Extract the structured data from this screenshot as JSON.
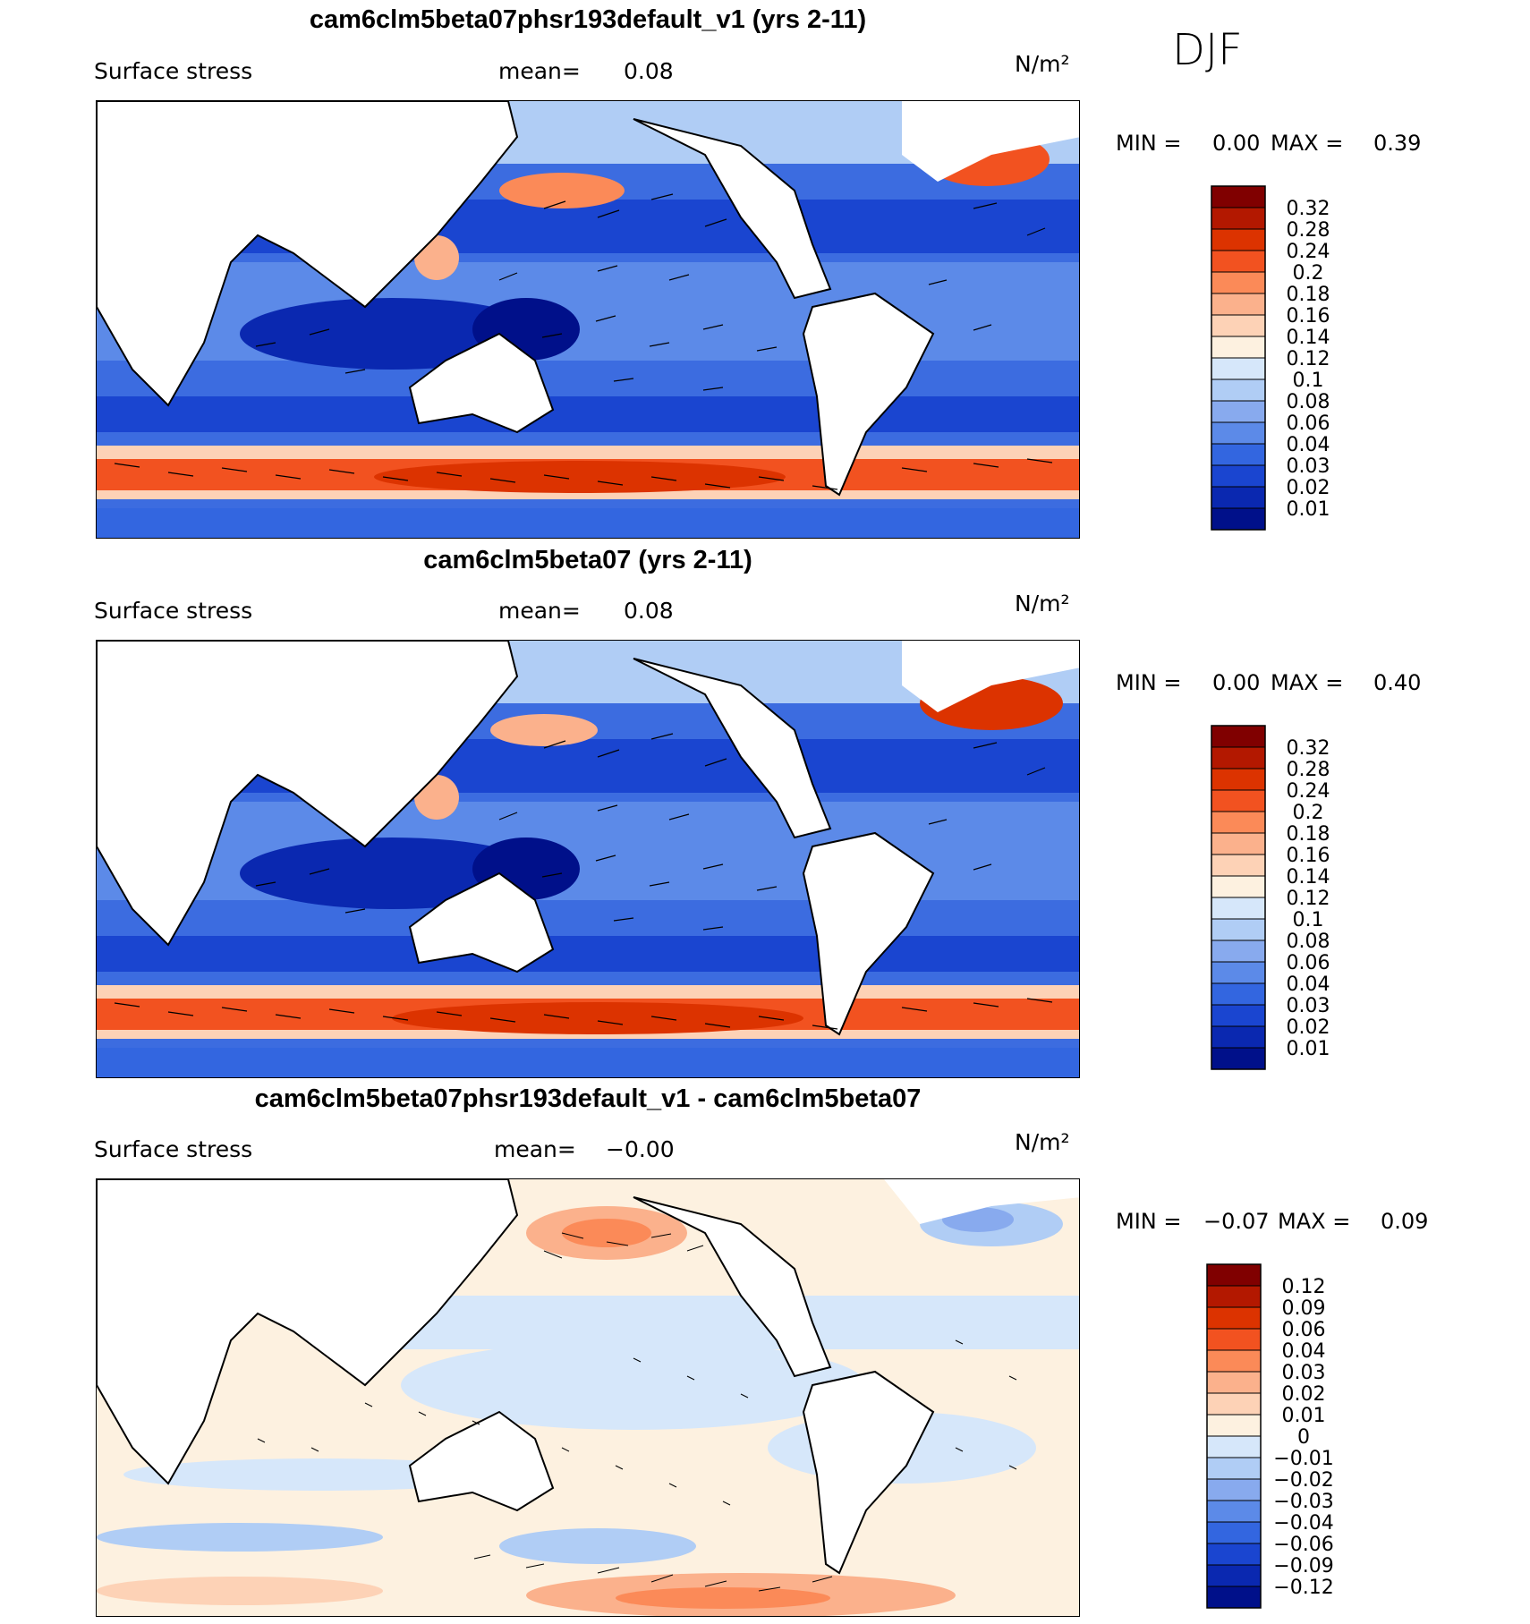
{
  "season": "DJF",
  "panels": [
    {
      "title": "cam6clm5beta07phsr193default_v1 (yrs 2-11)",
      "variable": "Surface stress",
      "mean_label": "mean=",
      "mean_value": "0.08",
      "units": "N/m²",
      "min_label": "MIN =",
      "min_value": "0.00",
      "max_label": "MAX =",
      "max_value": "0.39",
      "colorbar": {
        "levels": [
          "0.32",
          "0.28",
          "0.24",
          "0.2",
          "0.18",
          "0.16",
          "0.14",
          "0.12",
          "0.1",
          "0.08",
          "0.06",
          "0.04",
          "0.03",
          "0.02",
          "0.01"
        ],
        "colors": [
          "#800000",
          "#b31800",
          "#dc3300",
          "#f25220",
          "#fb8a58",
          "#fbb18c",
          "#fdd2b6",
          "#fdf1e0",
          "#d6e7fa",
          "#b0cdf5",
          "#88aaee",
          "#5c8ae8",
          "#3366e0",
          "#1a45d0",
          "#0a28b0",
          "#00108a"
        ]
      }
    },
    {
      "title": "cam6clm5beta07 (yrs 2-11)",
      "variable": "Surface stress",
      "mean_label": "mean=",
      "mean_value": "0.08",
      "units": "N/m²",
      "min_label": "MIN =",
      "min_value": "0.00",
      "max_label": "MAX =",
      "max_value": "0.40",
      "colorbar": {
        "levels": [
          "0.32",
          "0.28",
          "0.24",
          "0.2",
          "0.18",
          "0.16",
          "0.14",
          "0.12",
          "0.1",
          "0.08",
          "0.06",
          "0.04",
          "0.03",
          "0.02",
          "0.01"
        ],
        "colors": [
          "#800000",
          "#b31800",
          "#dc3300",
          "#f25220",
          "#fb8a58",
          "#fbb18c",
          "#fdd2b6",
          "#fdf1e0",
          "#d6e7fa",
          "#b0cdf5",
          "#88aaee",
          "#5c8ae8",
          "#3366e0",
          "#1a45d0",
          "#0a28b0",
          "#00108a"
        ]
      }
    },
    {
      "title": "cam6clm5beta07phsr193default_v1 - cam6clm5beta07",
      "variable": "Surface stress",
      "mean_label": "mean=",
      "mean_value": "−0.00",
      "units": "N/m²",
      "min_label": "MIN =",
      "min_value": "−0.07",
      "max_label": "MAX =",
      "max_value": "0.09",
      "colorbar": {
        "levels": [
          "0.12",
          "0.09",
          "0.06",
          "0.04",
          "0.03",
          "0.02",
          "0.01",
          "0",
          "−0.01",
          "−0.02",
          "−0.03",
          "−0.04",
          "−0.06",
          "−0.09",
          "−0.12"
        ],
        "colors": [
          "#800000",
          "#b31800",
          "#dc3300",
          "#f25220",
          "#fb8a58",
          "#fbb18c",
          "#fdd2b6",
          "#fdf1e0",
          "#d6e7fa",
          "#b0cdf5",
          "#88aaee",
          "#5c8ae8",
          "#3366e0",
          "#1a45d0",
          "#0a28b0",
          "#00108a"
        ]
      }
    }
  ]
}
